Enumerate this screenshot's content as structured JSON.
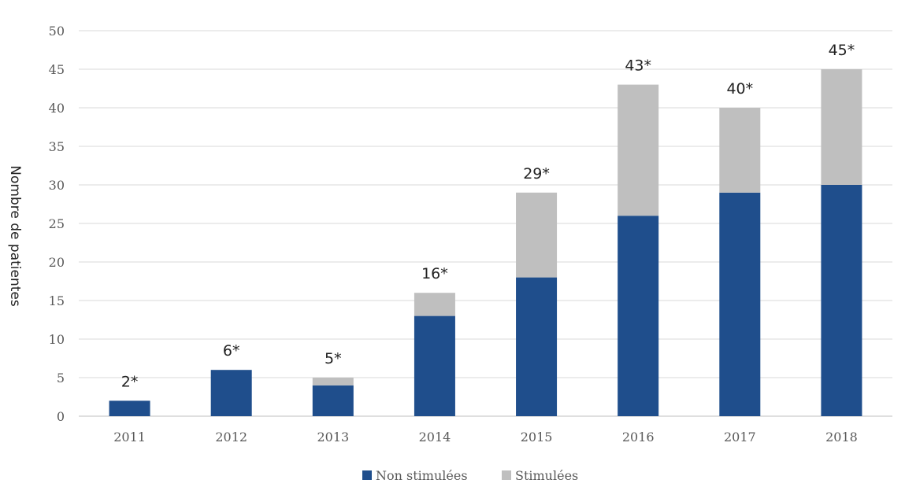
{
  "chart_data": {
    "type": "bar",
    "stacked": true,
    "categories": [
      "2011",
      "2012",
      "2013",
      "2014",
      "2015",
      "2016",
      "2017",
      "2018"
    ],
    "series": [
      {
        "name": "Non stimulées",
        "values": [
          2,
          6,
          4,
          13,
          18,
          26,
          29,
          30
        ],
        "color": "#1f4e8c"
      },
      {
        "name": "Stimulées",
        "values": [
          0,
          0,
          1,
          3,
          11,
          17,
          11,
          15
        ],
        "color": "#bfbfbf"
      }
    ],
    "total_labels": [
      "2*",
      "6*",
      "5*",
      "16*",
      "29*",
      "43*",
      "40*",
      "45*"
    ],
    "title": "",
    "xlabel": "",
    "ylabel": "Nombre de patientes",
    "ylim": [
      0,
      50
    ],
    "yticks": [
      0,
      5,
      10,
      15,
      20,
      25,
      30,
      35,
      40,
      45,
      50
    ],
    "grid": true,
    "legend_position": "bottom"
  }
}
